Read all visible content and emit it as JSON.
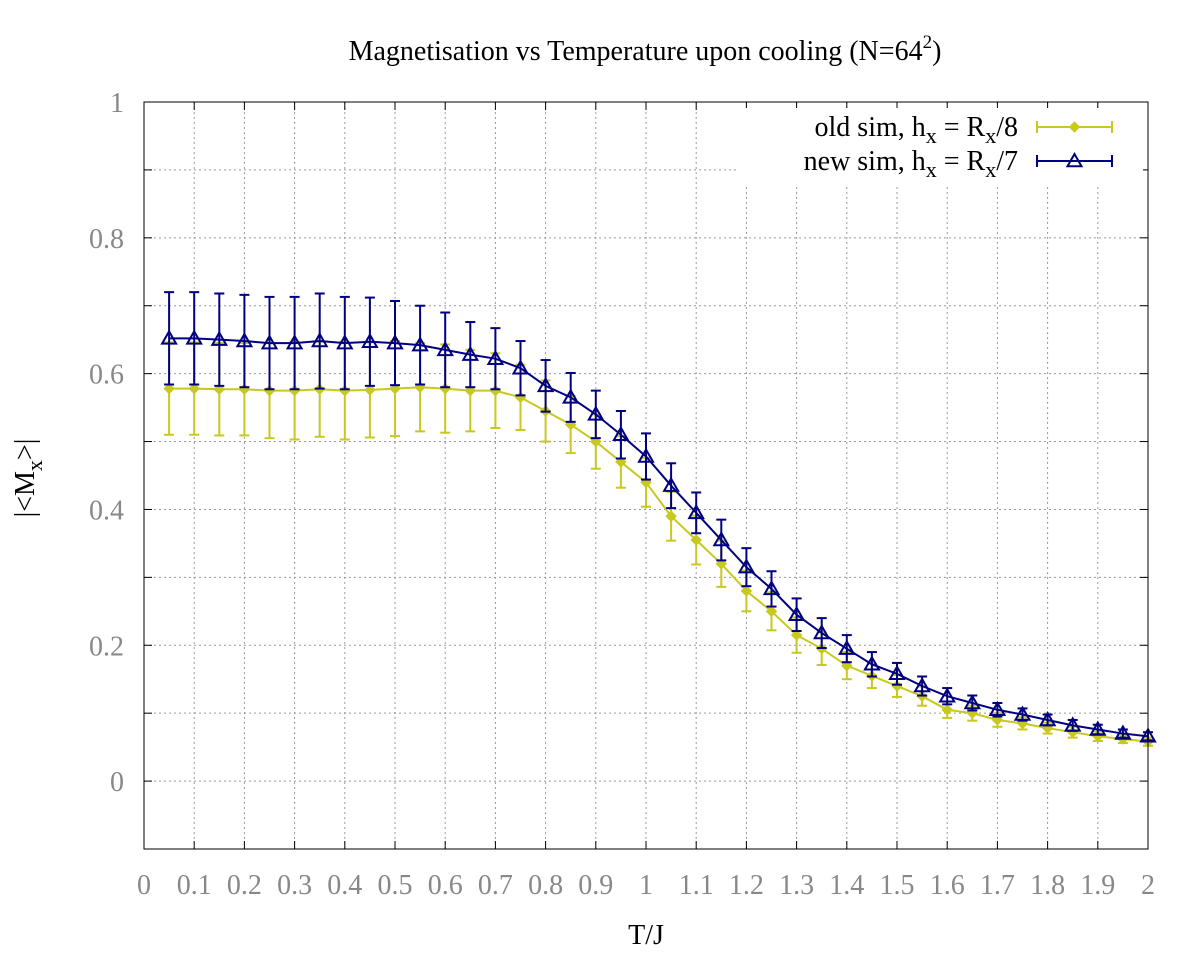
{
  "chart_data": {
    "type": "line",
    "title": "Magnetisation vs Temperature upon cooling (N=64",
    "title_superscript": "2",
    "title_close": ")",
    "xlabel": "T/J",
    "ylabel_prefix": "|<M",
    "ylabel_subscript": "x",
    "ylabel_suffix": ">|",
    "xlim": [
      0,
      2
    ],
    "ylim": [
      -0.1,
      1.0
    ],
    "grid": true,
    "legend_position": "top-right",
    "x_ticks": [
      "0",
      "0.1",
      "0.2",
      "0.3",
      "0.4",
      "0.5",
      "0.6",
      "0.7",
      "0.8",
      "0.9",
      "1",
      "1.1",
      "1.2",
      "1.3",
      "1.4",
      "1.5",
      "1.6",
      "1.7",
      "1.8",
      "1.9",
      "2"
    ],
    "y_ticks": [
      "0",
      "0.2",
      "0.4",
      "0.6",
      "0.8",
      "1"
    ],
    "x": [
      0.05,
      0.1,
      0.15,
      0.2,
      0.25,
      0.3,
      0.35,
      0.4,
      0.45,
      0.5,
      0.55,
      0.6,
      0.65,
      0.7,
      0.75,
      0.8,
      0.85,
      0.9,
      0.95,
      1.0,
      1.05,
      1.1,
      1.15,
      1.2,
      1.25,
      1.3,
      1.35,
      1.4,
      1.45,
      1.5,
      1.55,
      1.6,
      1.65,
      1.7,
      1.75,
      1.8,
      1.85,
      1.9,
      1.95,
      2.0
    ],
    "series": [
      {
        "name_prefix": "old sim, h",
        "name_sub1": "x",
        "name_mid": " = R",
        "name_sub2": "x",
        "name_suffix": "/8",
        "color": "#c8c81e",
        "marker": "diamond-filled",
        "values": [
          0.578,
          0.578,
          0.577,
          0.577,
          0.575,
          0.575,
          0.577,
          0.575,
          0.576,
          0.578,
          0.58,
          0.578,
          0.575,
          0.575,
          0.565,
          0.545,
          0.525,
          0.5,
          0.47,
          0.44,
          0.39,
          0.355,
          0.32,
          0.28,
          0.25,
          0.215,
          0.195,
          0.17,
          0.155,
          0.14,
          0.125,
          0.105,
          0.1,
          0.09,
          0.085,
          0.078,
          0.072,
          0.066,
          0.062,
          0.058
        ],
        "errors": [
          0.068,
          0.068,
          0.068,
          0.068,
          0.07,
          0.072,
          0.07,
          0.072,
          0.07,
          0.07,
          0.065,
          0.065,
          0.06,
          0.055,
          0.048,
          0.045,
          0.042,
          0.04,
          0.038,
          0.036,
          0.036,
          0.036,
          0.034,
          0.03,
          0.028,
          0.026,
          0.024,
          0.02,
          0.018,
          0.016,
          0.014,
          0.012,
          0.011,
          0.01,
          0.009,
          0.008,
          0.008,
          0.007,
          0.006,
          0.006
        ]
      },
      {
        "name_prefix": "new sim, h",
        "name_sub1": "x",
        "name_mid": " = R",
        "name_sub2": "x",
        "name_suffix": "/7",
        "color": "#000080",
        "marker": "triangle-open",
        "values": [
          0.652,
          0.652,
          0.65,
          0.648,
          0.645,
          0.645,
          0.648,
          0.645,
          0.647,
          0.645,
          0.642,
          0.635,
          0.628,
          0.622,
          0.608,
          0.582,
          0.565,
          0.54,
          0.51,
          0.478,
          0.435,
          0.395,
          0.355,
          0.315,
          0.283,
          0.245,
          0.218,
          0.195,
          0.172,
          0.158,
          0.14,
          0.125,
          0.115,
          0.105,
          0.098,
          0.09,
          0.082,
          0.076,
          0.07,
          0.066
        ],
        "errors": [
          0.068,
          0.068,
          0.068,
          0.068,
          0.068,
          0.068,
          0.07,
          0.068,
          0.065,
          0.062,
          0.058,
          0.055,
          0.048,
          0.045,
          0.04,
          0.038,
          0.036,
          0.035,
          0.035,
          0.034,
          0.033,
          0.03,
          0.03,
          0.028,
          0.026,
          0.024,
          0.022,
          0.02,
          0.018,
          0.016,
          0.014,
          0.012,
          0.011,
          0.01,
          0.009,
          0.008,
          0.008,
          0.007,
          0.006,
          0.006
        ]
      }
    ]
  }
}
